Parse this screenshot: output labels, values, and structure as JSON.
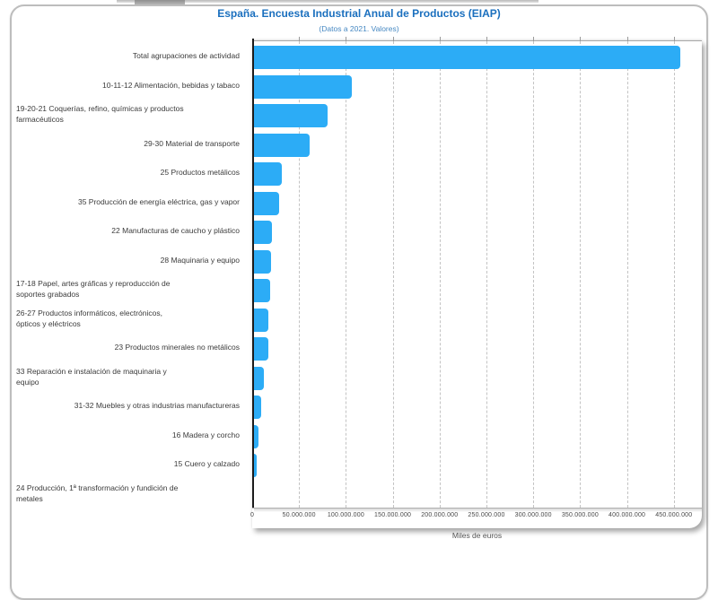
{
  "header": {
    "title": "España. Encuesta Industrial Anual de Productos (EIAP)",
    "subtitle": "(Datos a 2021. Valores)"
  },
  "colors": {
    "bar": "#2CACF6",
    "title_text": "#1a6fbe",
    "subtitle_text": "#4688c2"
  },
  "chart_data": {
    "type": "bar",
    "orientation": "horizontal",
    "title": "España. Encuesta Industrial Anual de Productos (EIAP)",
    "subtitle": "(Datos a 2021. Valores)",
    "xlabel": "Miles de euros",
    "ylabel": "",
    "xlim": [
      0,
      450000000
    ],
    "x_tick_interval": 50000000,
    "x_tick_labels": [
      "0",
      "50.000.000",
      "100.000.000",
      "150.000.000",
      "200.000.000",
      "250.000.000",
      "300.000.000",
      "350.000.000",
      "400.000.000",
      "450.000.000"
    ],
    "grid": "dashed-vertical",
    "legend": "none",
    "categories": [
      {
        "label": "Total agrupaciones de actividad",
        "wrap": false
      },
      {
        "label": "10-11-12 Alimentación, bebidas y tabaco",
        "wrap": false
      },
      {
        "label": "19-20-21 Coquerías, refino, químicas y productos\nfarmacéuticos",
        "wrap": true
      },
      {
        "label": "29-30 Material de transporte",
        "wrap": false
      },
      {
        "label": "25 Productos metálicos",
        "wrap": false
      },
      {
        "label": "35 Producción de energía eléctrica, gas y vapor",
        "wrap": false
      },
      {
        "label": "22 Manufacturas de caucho y plástico",
        "wrap": false
      },
      {
        "label": "28 Maquinaria y equipo",
        "wrap": false
      },
      {
        "label": "17-18 Papel, artes gráficas y reproducción de\nsoportes grabados",
        "wrap": true
      },
      {
        "label": "26-27 Productos informáticos, electrónicos,\nópticos y eléctricos",
        "wrap": true
      },
      {
        "label": "23 Productos minerales no metálicos",
        "wrap": false
      },
      {
        "label": "33 Reparación e instalación de maquinaria y\nequipo",
        "wrap": true
      },
      {
        "label": "31-32 Muebles y otras industrias manufactureras",
        "wrap": false
      },
      {
        "label": "16 Madera y corcho",
        "wrap": false
      },
      {
        "label": "15 Cuero y calzado",
        "wrap": false
      },
      {
        "label": "24 Producción, 1ª transformación y fundición de\nmetales",
        "wrap": true
      }
    ],
    "values": [
      455000000,
      104000000,
      79000000,
      59000000,
      29500000,
      26500000,
      19000000,
      18500000,
      17000000,
      15500000,
      15500000,
      11000000,
      7500000,
      4500000,
      2500000,
      0
    ]
  }
}
